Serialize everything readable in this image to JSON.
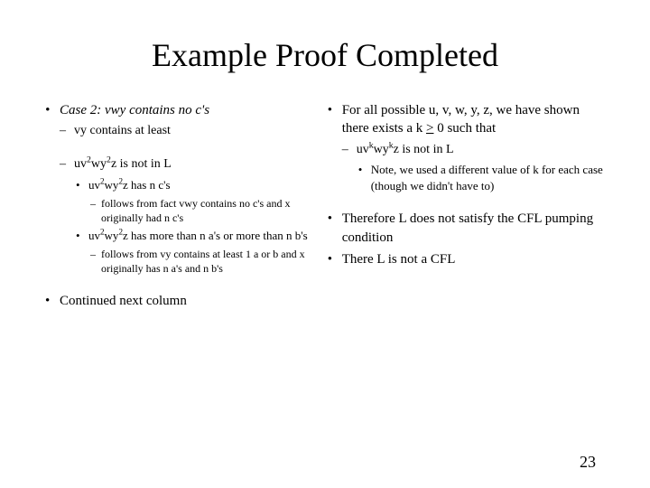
{
  "title": "Example Proof Completed",
  "left": {
    "case2": "Case 2: vwy contains no c's",
    "vy_contains": "vy contains at least",
    "not_in_L_pre": "uv",
    "not_in_L_mid": "wy",
    "not_in_L_post": "z is not in L",
    "has_n_cs_pre": "uv",
    "has_n_cs_mid": "wy",
    "has_n_cs_post": "z has n c's",
    "follows1": "follows from fact vwy contains no c's and x originally had n c's",
    "more_than_pre": "uv",
    "more_than_mid": "wy",
    "more_than_post": "z has more than n a's or more than n b's",
    "follows2": "follows from vy contains at least 1 a or b and x originally has n a's and n b's",
    "continued": "Continued next column"
  },
  "right": {
    "forall": "For all possible u, v, w, y, z, we have shown there exists a k ",
    "forall_tail": " 0 such that",
    "uvk_pre": "uv",
    "uvk_mid": "wy",
    "uvk_post": "z is not in L",
    "note": "Note, we used a different value of k for each case (though we didn't have to)",
    "therefore1": "Therefore L does not satisfy the CFL pumping condition",
    "therefore2": "There L is not a CFL"
  },
  "page_number": "23",
  "colors": {
    "bg": "#ffffff",
    "text": "#000000"
  },
  "fonts": {
    "title_size": 36,
    "body_size": 15
  }
}
